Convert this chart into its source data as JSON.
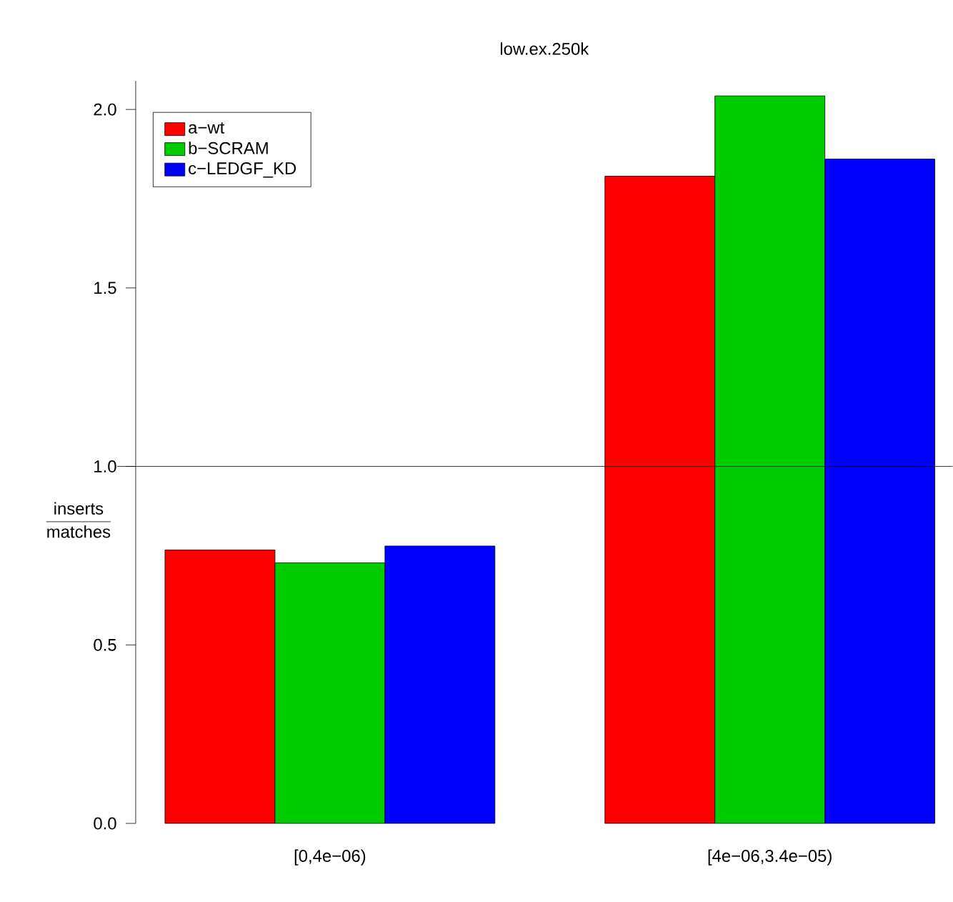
{
  "chart_data": {
    "type": "bar",
    "title": "low.ex.250k",
    "ylabel": "\\frac{\\mathrm{inserts}}{\\mathrm{matches}}",
    "categories": [
      "[0,4e−06)",
      "[4e−06,3.4e−05)"
    ],
    "series": [
      {
        "name": "a−wt",
        "color": "#ff0000",
        "values": [
          0.766,
          1.813
        ]
      },
      {
        "name": "b−SCRAM",
        "color": "#00cd00",
        "values": [
          0.73,
          2.038
        ]
      },
      {
        "name": "c−LEDGF_KD",
        "color": "#0000ff",
        "values": [
          0.777,
          1.861
        ]
      }
    ],
    "ylim": [
      0,
      2.08
    ],
    "yticks": [
      {
        "value": 0,
        "label": "0.0"
      },
      {
        "value": 0.5,
        "label": "0.5"
      },
      {
        "value": 1,
        "label": "1.0"
      },
      {
        "value": 1.5,
        "label": "1.5"
      },
      {
        "value": 2,
        "label": "2.0"
      }
    ],
    "ref_lines": [
      {
        "axis": "y",
        "value": 1,
        "color": "#000000"
      }
    ],
    "legend": "top left"
  }
}
